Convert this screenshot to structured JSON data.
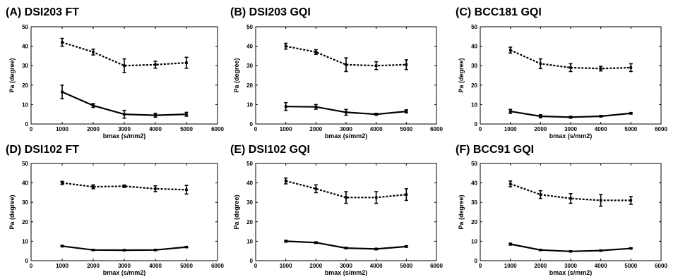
{
  "figure": {
    "background": "#ffffff",
    "line_color": "#000000"
  },
  "chart_data": [
    {
      "type": "line",
      "title": "(A) DSI203 FT",
      "xlabel": "bmax (s/mm2)",
      "ylabel": "Pa (degree)",
      "xlim": [
        0,
        6000
      ],
      "ylim": [
        0,
        50
      ],
      "xticks": [
        "0",
        "1000",
        "2000",
        "3000",
        "4000",
        "5000",
        "6000"
      ],
      "yticks": [
        "0",
        "10",
        "20",
        "30",
        "40",
        "50"
      ],
      "grid": false,
      "x": [
        1000,
        2000,
        3000,
        4000,
        5000
      ],
      "series": [
        {
          "style": "dashed",
          "values": [
            42,
            37,
            30,
            30.5,
            31.5
          ],
          "errors": [
            2,
            1.5,
            3.5,
            1.8,
            2.8
          ]
        },
        {
          "style": "solid",
          "values": [
            16.5,
            9.5,
            5,
            4.5,
            5
          ],
          "errors": [
            3.5,
            1,
            2,
            1,
            1
          ]
        }
      ]
    },
    {
      "type": "line",
      "title": "(B) DSI203 GQI",
      "xlabel": "bmax (s/mm2)",
      "ylabel": "Pa (degree)",
      "xlim": [
        0,
        6000
      ],
      "ylim": [
        0,
        50
      ],
      "xticks": [
        "0",
        "1000",
        "2000",
        "3000",
        "4000",
        "5000",
        "6000"
      ],
      "yticks": [
        "0",
        "10",
        "20",
        "30",
        "40",
        "50"
      ],
      "grid": false,
      "x": [
        1000,
        2000,
        3000,
        4000,
        5000
      ],
      "series": [
        {
          "style": "dashed",
          "values": [
            40,
            37,
            30.5,
            30,
            30.5
          ],
          "errors": [
            1.5,
            1.2,
            3.5,
            2,
            2.5
          ]
        },
        {
          "style": "solid",
          "values": [
            9,
            8.8,
            6,
            5,
            6.5
          ],
          "errors": [
            2,
            1.2,
            1.5,
            0.5,
            0.8
          ]
        }
      ]
    },
    {
      "type": "line",
      "title": "(C) BCC181 GQI",
      "xlabel": "bmax (s/mm2)",
      "ylabel": "Pa (degree)",
      "xlim": [
        0,
        6000
      ],
      "ylim": [
        0,
        50
      ],
      "xticks": [
        "0",
        "1000",
        "2000",
        "3000",
        "4000",
        "5000",
        "6000"
      ],
      "yticks": [
        "0",
        "10",
        "20",
        "30",
        "40",
        "50"
      ],
      "grid": false,
      "x": [
        1000,
        2000,
        3000,
        4000,
        5000
      ],
      "series": [
        {
          "style": "dashed",
          "values": [
            38,
            31,
            29,
            28.5,
            29
          ],
          "errors": [
            1.5,
            2.5,
            2,
            1.2,
            2
          ]
        },
        {
          "style": "solid",
          "values": [
            6.5,
            4,
            3.5,
            4,
            5.5
          ],
          "errors": [
            1,
            0.8,
            0.5,
            0.4,
            0.4
          ]
        }
      ]
    },
    {
      "type": "line",
      "title": "(D) DSI102 FT",
      "xlabel": "bmax (s/mm2)",
      "ylabel": "Pa (degree)",
      "xlim": [
        0,
        6000
      ],
      "ylim": [
        0,
        50
      ],
      "xticks": [
        "0",
        "1000",
        "2000",
        "3000",
        "4000",
        "5000",
        "6000"
      ],
      "yticks": [
        "0",
        "10",
        "20",
        "30",
        "40",
        "50"
      ],
      "grid": false,
      "x": [
        1000,
        2000,
        3000,
        4000,
        5000
      ],
      "series": [
        {
          "style": "dashed",
          "values": [
            40,
            38,
            38.3,
            37,
            36.5
          ],
          "errors": [
            0.8,
            1,
            0.6,
            1.5,
            2.2
          ]
        },
        {
          "style": "solid",
          "values": [
            7.5,
            5.5,
            5.4,
            5.5,
            7
          ],
          "errors": [
            0.4,
            0.3,
            0.3,
            0.3,
            0.3
          ]
        }
      ]
    },
    {
      "type": "line",
      "title": "(E) DSI102 GQI",
      "xlabel": "bmax (s/mm2)",
      "ylabel": "Pa (degree)",
      "xlim": [
        0,
        6000
      ],
      "ylim": [
        0,
        50
      ],
      "xticks": [
        "0",
        "1000",
        "2000",
        "3000",
        "4000",
        "5000",
        "6000"
      ],
      "yticks": [
        "0",
        "10",
        "20",
        "30",
        "40",
        "50"
      ],
      "grid": false,
      "x": [
        1000,
        2000,
        3000,
        4000,
        5000
      ],
      "series": [
        {
          "style": "dashed",
          "values": [
            41,
            37,
            32.5,
            32.5,
            34
          ],
          "errors": [
            1.5,
            2,
            3,
            3,
            3
          ]
        },
        {
          "style": "solid",
          "values": [
            10,
            9.3,
            6.5,
            6,
            7.3
          ],
          "errors": [
            0.5,
            0.4,
            0.4,
            0.4,
            0.4
          ]
        }
      ]
    },
    {
      "type": "line",
      "title": "(F) BCC91 GQI",
      "xlabel": "bmax (s/mm2)",
      "ylabel": "Pa (degree)",
      "xlim": [
        0,
        6000
      ],
      "ylim": [
        0,
        50
      ],
      "xticks": [
        "0",
        "1000",
        "2000",
        "3000",
        "4000",
        "5000",
        "6000"
      ],
      "yticks": [
        "0",
        "10",
        "20",
        "30",
        "40",
        "50"
      ],
      "grid": false,
      "x": [
        1000,
        2000,
        3000,
        4000,
        5000
      ],
      "series": [
        {
          "style": "dashed",
          "values": [
            39.5,
            34,
            32,
            31,
            31
          ],
          "errors": [
            1.5,
            2,
            2.5,
            3,
            2
          ]
        },
        {
          "style": "solid",
          "values": [
            8.5,
            5.5,
            4.8,
            5.2,
            6.3
          ],
          "errors": [
            0.5,
            0.3,
            0.3,
            0.3,
            0.3
          ]
        }
      ]
    }
  ]
}
